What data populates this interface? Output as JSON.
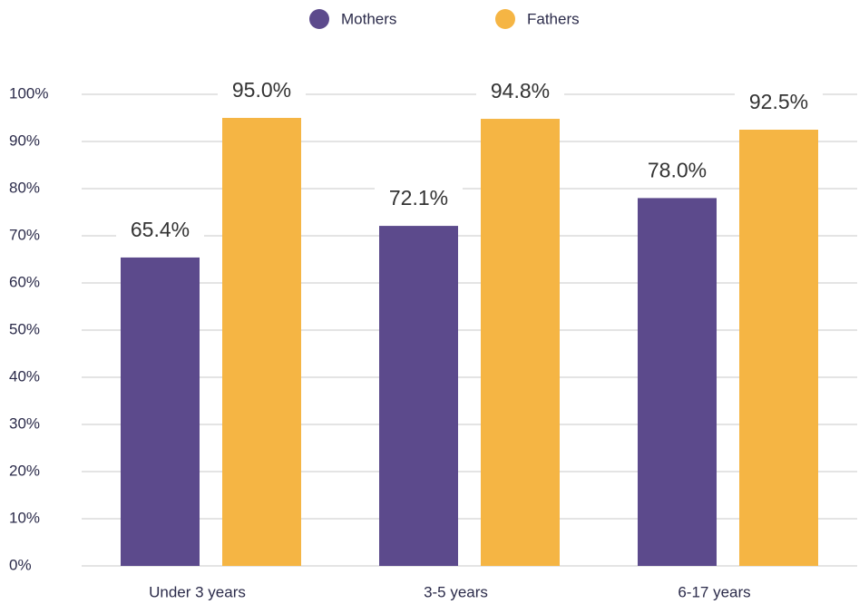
{
  "chart_data": {
    "type": "bar",
    "categories": [
      "Under 3 years",
      "3-5 years",
      "6-17 years"
    ],
    "series": [
      {
        "name": "Mothers",
        "color": "#5c4a8c",
        "values": [
          65.4,
          72.1,
          78.0
        ],
        "value_labels": [
          "65.4%",
          "72.1%",
          "78.0%"
        ]
      },
      {
        "name": "Fathers",
        "color": "#f5b544",
        "values": [
          95.0,
          94.8,
          92.5
        ],
        "value_labels": [
          "95.0%",
          "94.8%",
          "92.5%"
        ]
      }
    ],
    "ylim": [
      0,
      100
    ],
    "yticks": [
      {
        "value": 0,
        "label": "0%"
      },
      {
        "value": 10,
        "label": "10%"
      },
      {
        "value": 20,
        "label": "20%"
      },
      {
        "value": 30,
        "label": "30%"
      },
      {
        "value": 40,
        "label": "40%"
      },
      {
        "value": 50,
        "label": "50%"
      },
      {
        "value": 60,
        "label": "60%"
      },
      {
        "value": 70,
        "label": "70%"
      },
      {
        "value": 80,
        "label": "80%"
      },
      {
        "value": 90,
        "label": "90%"
      },
      {
        "value": 100,
        "label": "100%"
      }
    ],
    "grid": true,
    "legend": "top"
  }
}
